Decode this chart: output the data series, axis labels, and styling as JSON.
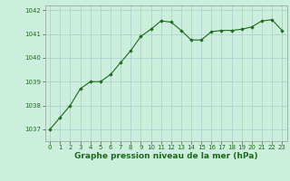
{
  "x": [
    0,
    1,
    2,
    3,
    4,
    5,
    6,
    7,
    8,
    9,
    10,
    11,
    12,
    13,
    14,
    15,
    16,
    17,
    18,
    19,
    20,
    21,
    22,
    23
  ],
  "y": [
    1037.0,
    1037.5,
    1038.0,
    1038.7,
    1039.0,
    1039.0,
    1039.3,
    1039.8,
    1040.3,
    1040.9,
    1041.2,
    1041.55,
    1041.5,
    1041.15,
    1040.75,
    1040.75,
    1041.1,
    1041.15,
    1041.15,
    1041.2,
    1041.3,
    1041.55,
    1041.6,
    1041.15
  ],
  "line_color": "#1a6b1a",
  "marker_color": "#1a6b1a",
  "bg_color": "#cceedd",
  "grid_color": "#aacccc",
  "xlabel": "Graphe pression niveau de la mer (hPa)",
  "xlabel_color": "#1a6b1a",
  "xlabel_fontsize": 6.5,
  "tick_color": "#1a6b1a",
  "tick_fontsize": 5.0,
  "ylim": [
    1036.5,
    1042.2
  ],
  "xlim": [
    -0.5,
    23.5
  ],
  "yticks": [
    1037,
    1038,
    1039,
    1040,
    1041,
    1042
  ],
  "xticks": [
    0,
    1,
    2,
    3,
    4,
    5,
    6,
    7,
    8,
    9,
    10,
    11,
    12,
    13,
    14,
    15,
    16,
    17,
    18,
    19,
    20,
    21,
    22,
    23
  ]
}
